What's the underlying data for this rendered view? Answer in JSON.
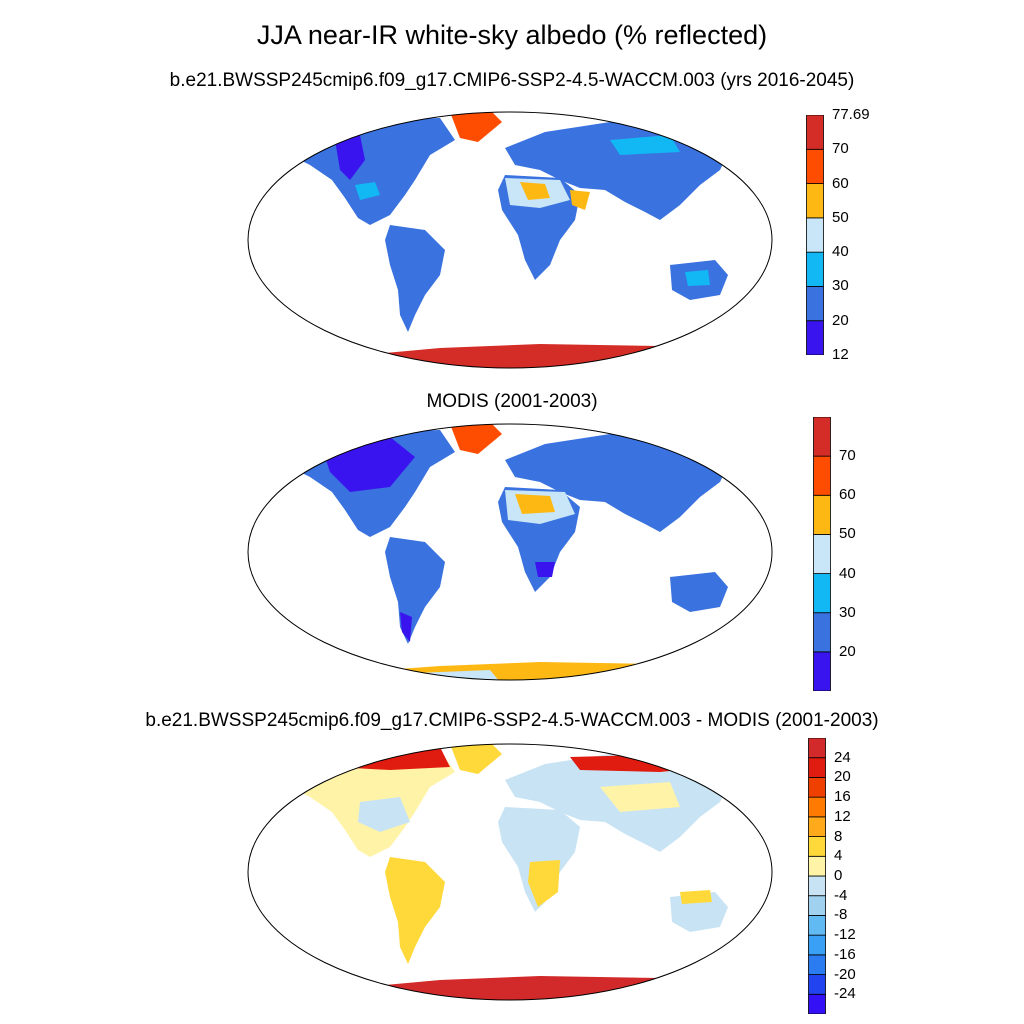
{
  "title": "JJA near-IR white-sky albedo (% reflected)",
  "panels": [
    {
      "subtitle": "b.e21.BWSSP245cmip6.f09_g17.CMIP6-SSP2-4.5-WACCM.003 (yrs 2016-2045)",
      "colorbar": {
        "colors": [
          "#3a14ee",
          "#3a72e0",
          "#12b8f4",
          "#c8e6f7",
          "#fdb813",
          "#fe4c00",
          "#d42c27"
        ],
        "labels": [
          "12",
          "20",
          "30",
          "40",
          "50",
          "60",
          "70",
          "77.69"
        ],
        "label_mode": "edges"
      }
    },
    {
      "subtitle": "MODIS (2001-2003)",
      "colorbar": {
        "colors": [
          "#3a14ee",
          "#3a72e0",
          "#12b8f4",
          "#c8e6f7",
          "#fdb813",
          "#fe4c00",
          "#d42c27"
        ],
        "labels": [
          "20",
          "30",
          "40",
          "50",
          "60",
          "70"
        ],
        "label_mode": "inner"
      }
    },
    {
      "subtitle": "b.e21.BWSSP245cmip6.f09_g17.CMIP6-SSP2-4.5-WACCM.003 - MODIS (2001-2003)",
      "colorbar": {
        "colors": [
          "#3310f5",
          "#2244f0",
          "#2a7cf0",
          "#3aa0f5",
          "#62baf2",
          "#a0d2f0",
          "#c8e4f4",
          "#fff3a8",
          "#ffd83a",
          "#ffaa1a",
          "#ff7a00",
          "#f04000",
          "#e01b10",
          "#d22a2a"
        ],
        "labels": [
          "-24",
          "-20",
          "-16",
          "-12",
          "-8",
          "-4",
          "0",
          "4",
          "8",
          "12",
          "16",
          "20",
          "24"
        ],
        "label_mode": "inner"
      }
    }
  ]
}
